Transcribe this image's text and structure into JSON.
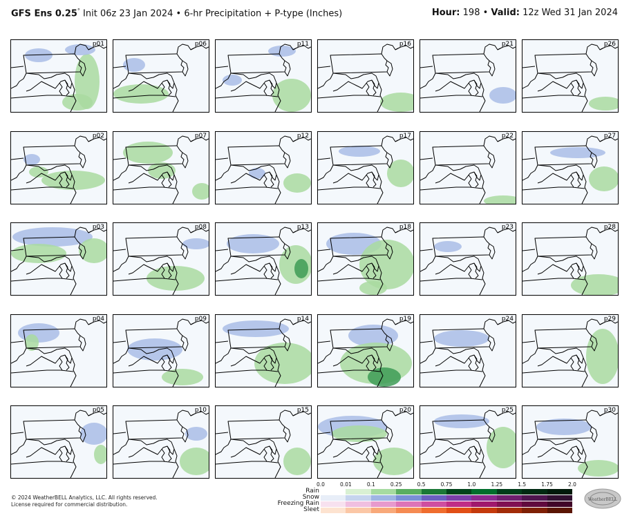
{
  "header": {
    "model": "GFS Ens 0.25",
    "degree": "°",
    "init": " Init 06z 23 Jan 2024 • 6-hr Precipitation + P-type (Inches)",
    "hour_label": "Hour:",
    "hour_value": " 198 • ",
    "valid_label": "Valid:",
    "valid_value": " 12z Wed 31 Jan 2024"
  },
  "panels": [
    {
      "label": "p01"
    },
    {
      "label": "p06"
    },
    {
      "label": "p11"
    },
    {
      "label": "p16"
    },
    {
      "label": "p21"
    },
    {
      "label": "p26"
    },
    {
      "label": "p02"
    },
    {
      "label": "p07"
    },
    {
      "label": "p12"
    },
    {
      "label": "p17"
    },
    {
      "label": "p22"
    },
    {
      "label": "p27"
    },
    {
      "label": "p03"
    },
    {
      "label": "p08"
    },
    {
      "label": "p13"
    },
    {
      "label": "p18"
    },
    {
      "label": "p23"
    },
    {
      "label": "p28"
    },
    {
      "label": "p04"
    },
    {
      "label": "p09"
    },
    {
      "label": "p14"
    },
    {
      "label": "p19"
    },
    {
      "label": "p24"
    },
    {
      "label": "p29"
    },
    {
      "label": "p05"
    },
    {
      "label": "p10"
    },
    {
      "label": "p15"
    },
    {
      "label": "p20"
    },
    {
      "label": "p25"
    },
    {
      "label": "p30"
    }
  ],
  "legend": {
    "ticks": [
      "0.0",
      "0.01",
      "0.1",
      "0.25",
      "0.5",
      "0.75",
      "1.0",
      "1.25",
      "1.5",
      "1.75",
      "2.0"
    ],
    "ptypes": [
      "Rain",
      "Snow",
      "Freezing Rain",
      "Sleet"
    ],
    "colors": {
      "rain": [
        "#ffffff",
        "#d9f0d3",
        "#a6dba0",
        "#5aae61",
        "#1b7837",
        "#00441b",
        "#006d2c",
        "#003d1a",
        "#002a12",
        "#001a0b"
      ],
      "snow": [
        "#e8eef8",
        "#c6d4ee",
        "#9fb5e3",
        "#7a8fd6",
        "#6a5fc0",
        "#7a3fa8",
        "#8a2a8e",
        "#6e1f6e",
        "#4e154e",
        "#301030"
      ],
      "freezing_rain": [
        "#f7e1ef",
        "#f0bfe0",
        "#e79acd",
        "#dd74b8",
        "#cf4ea0",
        "#c02d86",
        "#a0186c",
        "#801052",
        "#600a3d",
        "#400628"
      ],
      "sleet": [
        "#fde3d0",
        "#fbc7a6",
        "#f8a97a",
        "#f58b52",
        "#ef6d2e",
        "#e14f16",
        "#c43a0c",
        "#a22c08",
        "#7e2005",
        "#5a1503"
      ]
    }
  },
  "footer": {
    "copyright": "© 2024 WeatherBELL Analytics, LLC. All rights reserved.",
    "license": "License required for commercial distribution."
  },
  "logo": {
    "icon": "weatherbell-logo",
    "text": "WeatherBELL"
  }
}
